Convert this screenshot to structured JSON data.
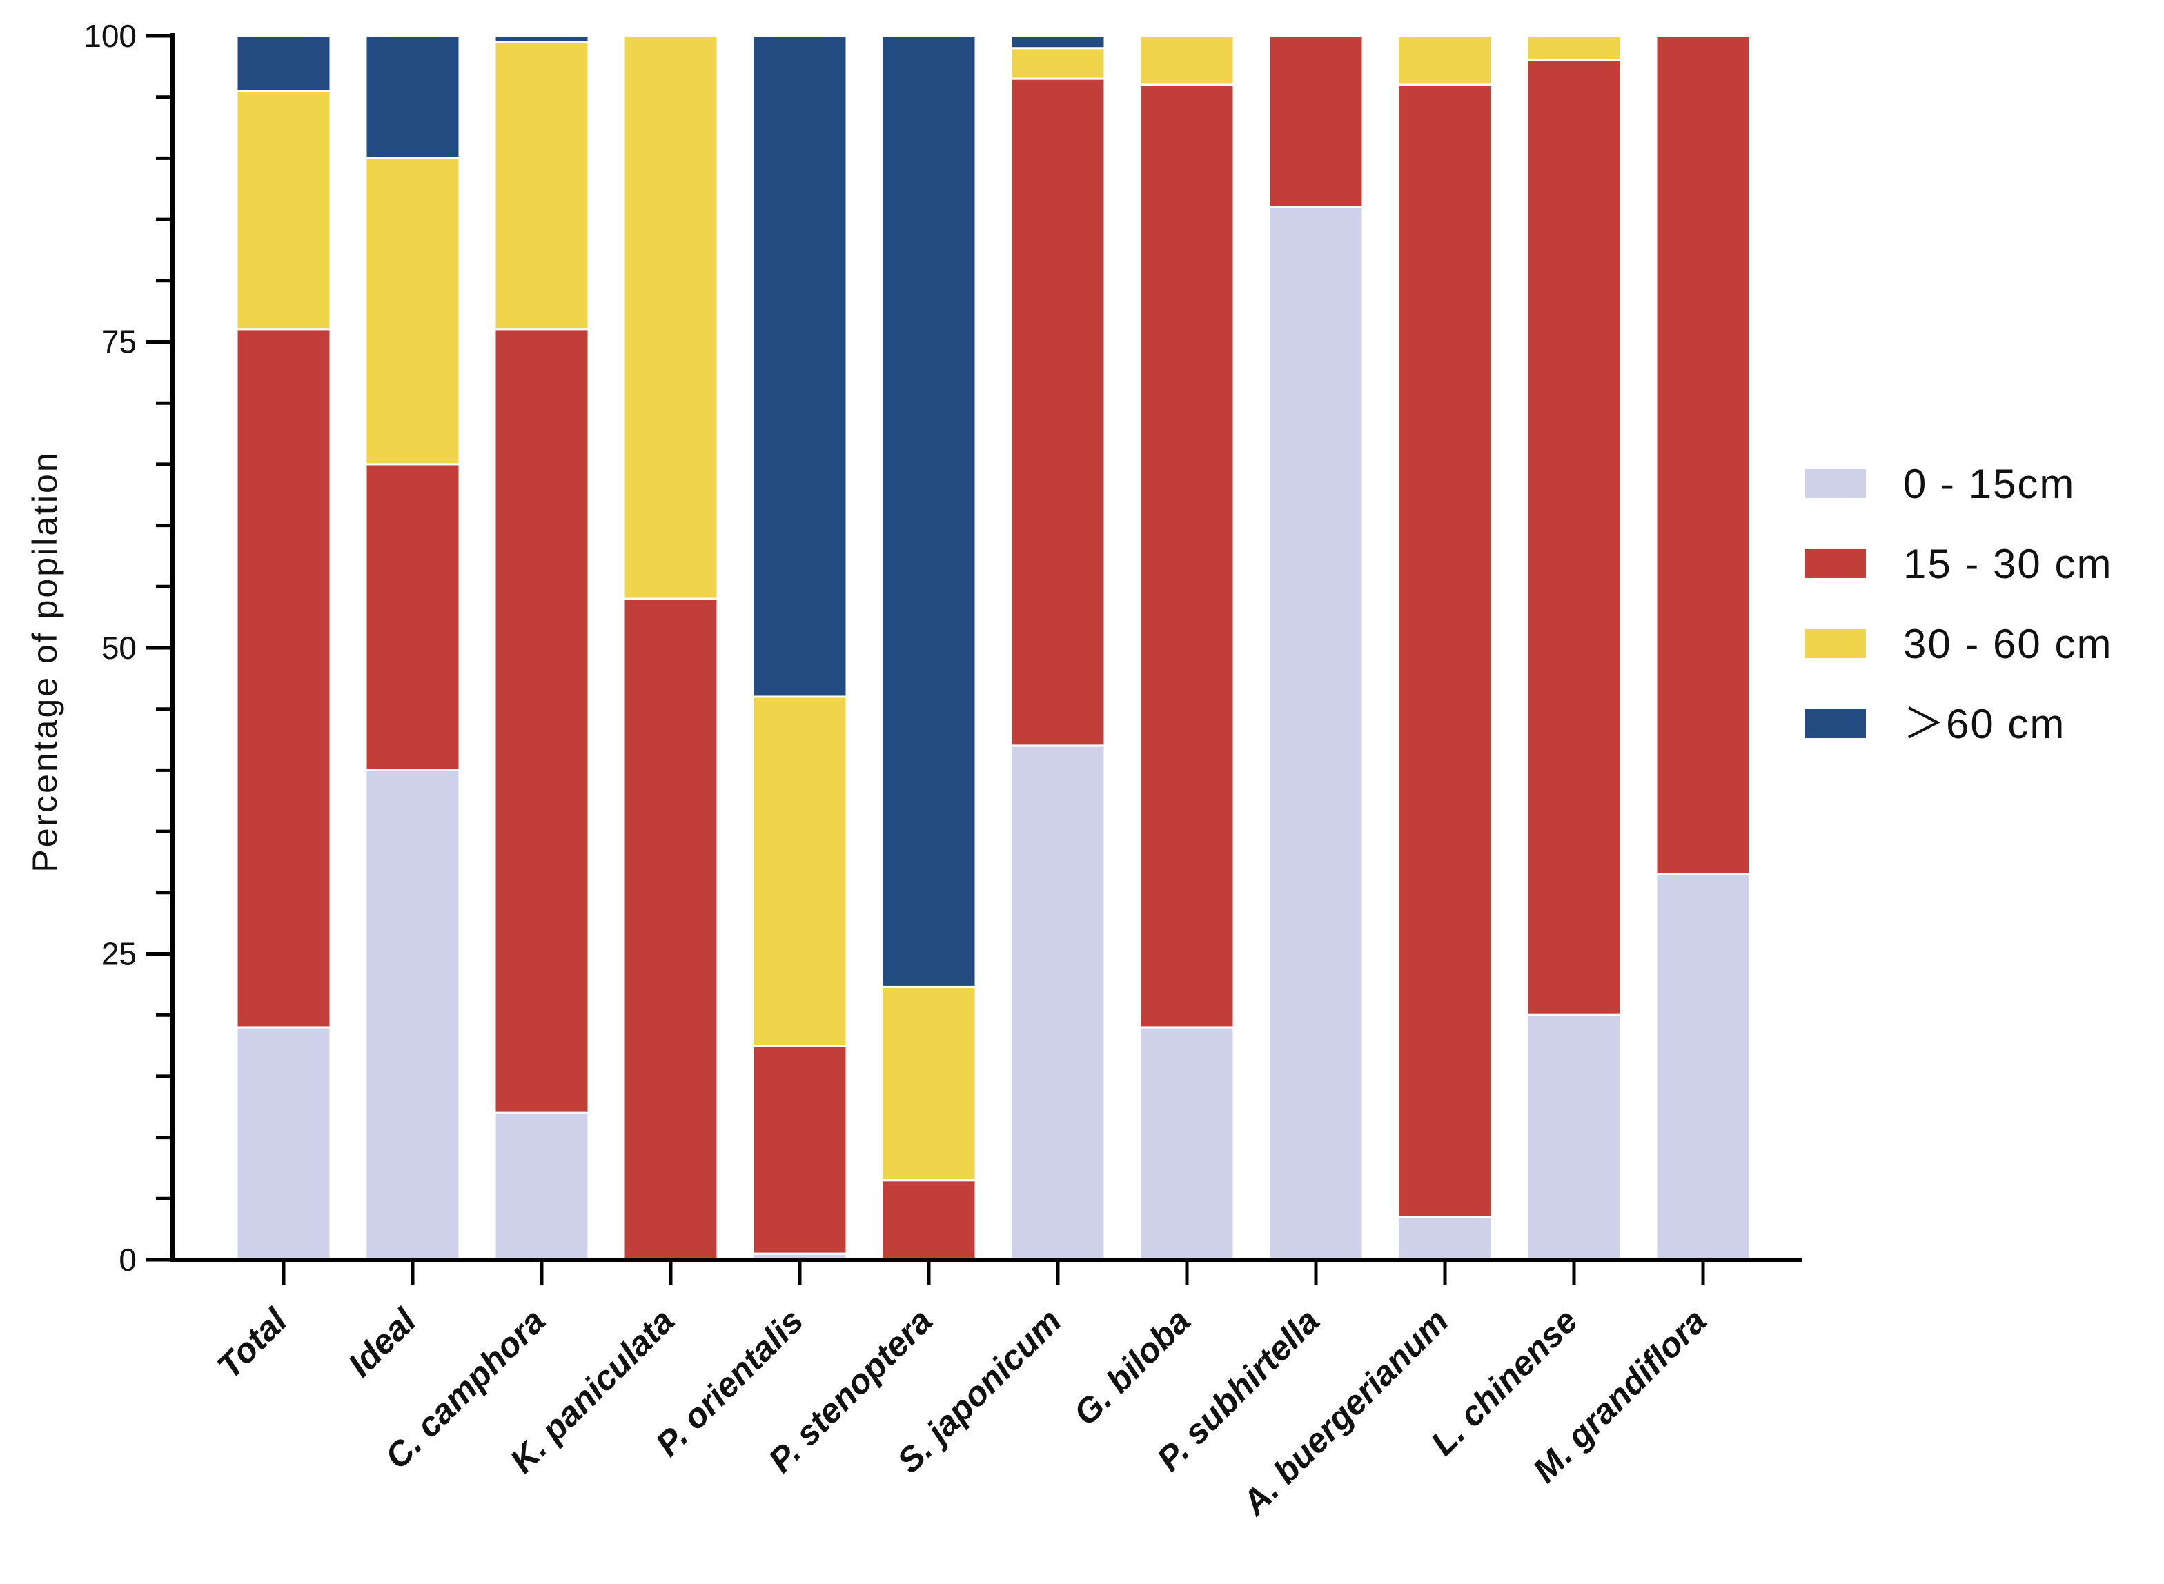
{
  "chart_data": {
    "type": "bar",
    "stacked": true,
    "title": "",
    "xlabel": "",
    "ylabel": "Percentage of popilation",
    "ylim": [
      0,
      100
    ],
    "yticks": [
      0,
      25,
      50,
      75,
      100
    ],
    "grid": false,
    "legend_position": "right",
    "categories": [
      "Total",
      "Ideal",
      "C. camphora",
      "K. paniculata",
      "P. orientalis",
      "P. stenoptera",
      "S. japonicum",
      "G. biloba",
      "P. subhirtella",
      "A. buergerianum",
      "L. chinense",
      "M. grandiflora"
    ],
    "series": [
      {
        "name": "0 - 15cm",
        "color": "#cfd1ea",
        "values": [
          19,
          40,
          12,
          0,
          0.5,
          0,
          42,
          19,
          86,
          3.5,
          20,
          31.5
        ]
      },
      {
        "name": "15 - 30 cm",
        "color": "#c13e39",
        "values": [
          57,
          25,
          64,
          54,
          17,
          6.5,
          54.5,
          77,
          14,
          92.5,
          78,
          68.5
        ]
      },
      {
        "name": "30 - 60 cm",
        "color": "#f0d54a",
        "values": [
          19.5,
          25,
          23.5,
          46,
          28.5,
          15.8,
          2.5,
          4,
          0,
          4,
          2,
          0
        ]
      },
      {
        "name": "＞60 cm",
        "color": "#224b82",
        "values": [
          4.5,
          10,
          0.5,
          0,
          54,
          77.7,
          1,
          0,
          0,
          0,
          0,
          0
        ]
      }
    ]
  }
}
